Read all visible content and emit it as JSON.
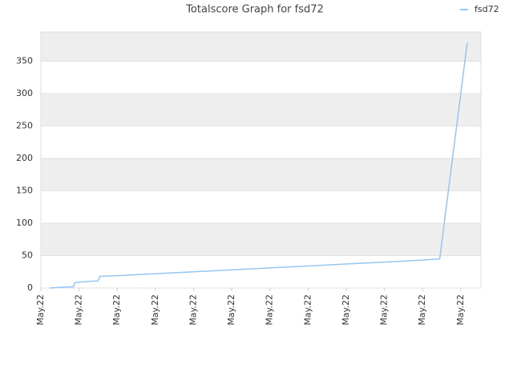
{
  "chart_data": {
    "type": "line",
    "title": "Totalscore Graph for fsd72",
    "x": [
      0.23,
      0.46,
      0.86,
      0.88,
      1.0,
      1.2,
      1.5,
      1.55,
      2.0,
      3.0,
      4.0,
      5.0,
      6.0,
      7.0,
      8.0,
      9.0,
      10.0,
      10.45,
      11.17
    ],
    "series": [
      {
        "name": "fsd72",
        "color": "#94c6f2",
        "values": [
          0,
          1,
          2,
          8,
          9,
          10,
          11,
          18,
          19,
          22,
          25,
          28,
          31,
          34,
          37,
          40,
          43,
          45,
          378
        ]
      }
    ],
    "xlim": [
      0,
      11.53
    ],
    "xticks": [
      {
        "value": 0,
        "label": "May.22"
      },
      {
        "value": 1,
        "label": "May.22"
      },
      {
        "value": 2,
        "label": "May.22"
      },
      {
        "value": 3,
        "label": "May.22"
      },
      {
        "value": 4,
        "label": "May.22"
      },
      {
        "value": 5,
        "label": "May.22"
      },
      {
        "value": 6,
        "label": "May.22"
      },
      {
        "value": 7,
        "label": "May.22"
      },
      {
        "value": 8,
        "label": "May.22"
      },
      {
        "value": 9,
        "label": "May.22"
      },
      {
        "value": 10,
        "label": "May.22"
      },
      {
        "value": 11,
        "label": "May.22"
      }
    ],
    "ylim": [
      0,
      395
    ],
    "yticks": [
      0,
      50,
      100,
      150,
      200,
      250,
      300,
      350
    ],
    "grid": true,
    "legend": "top-right"
  }
}
